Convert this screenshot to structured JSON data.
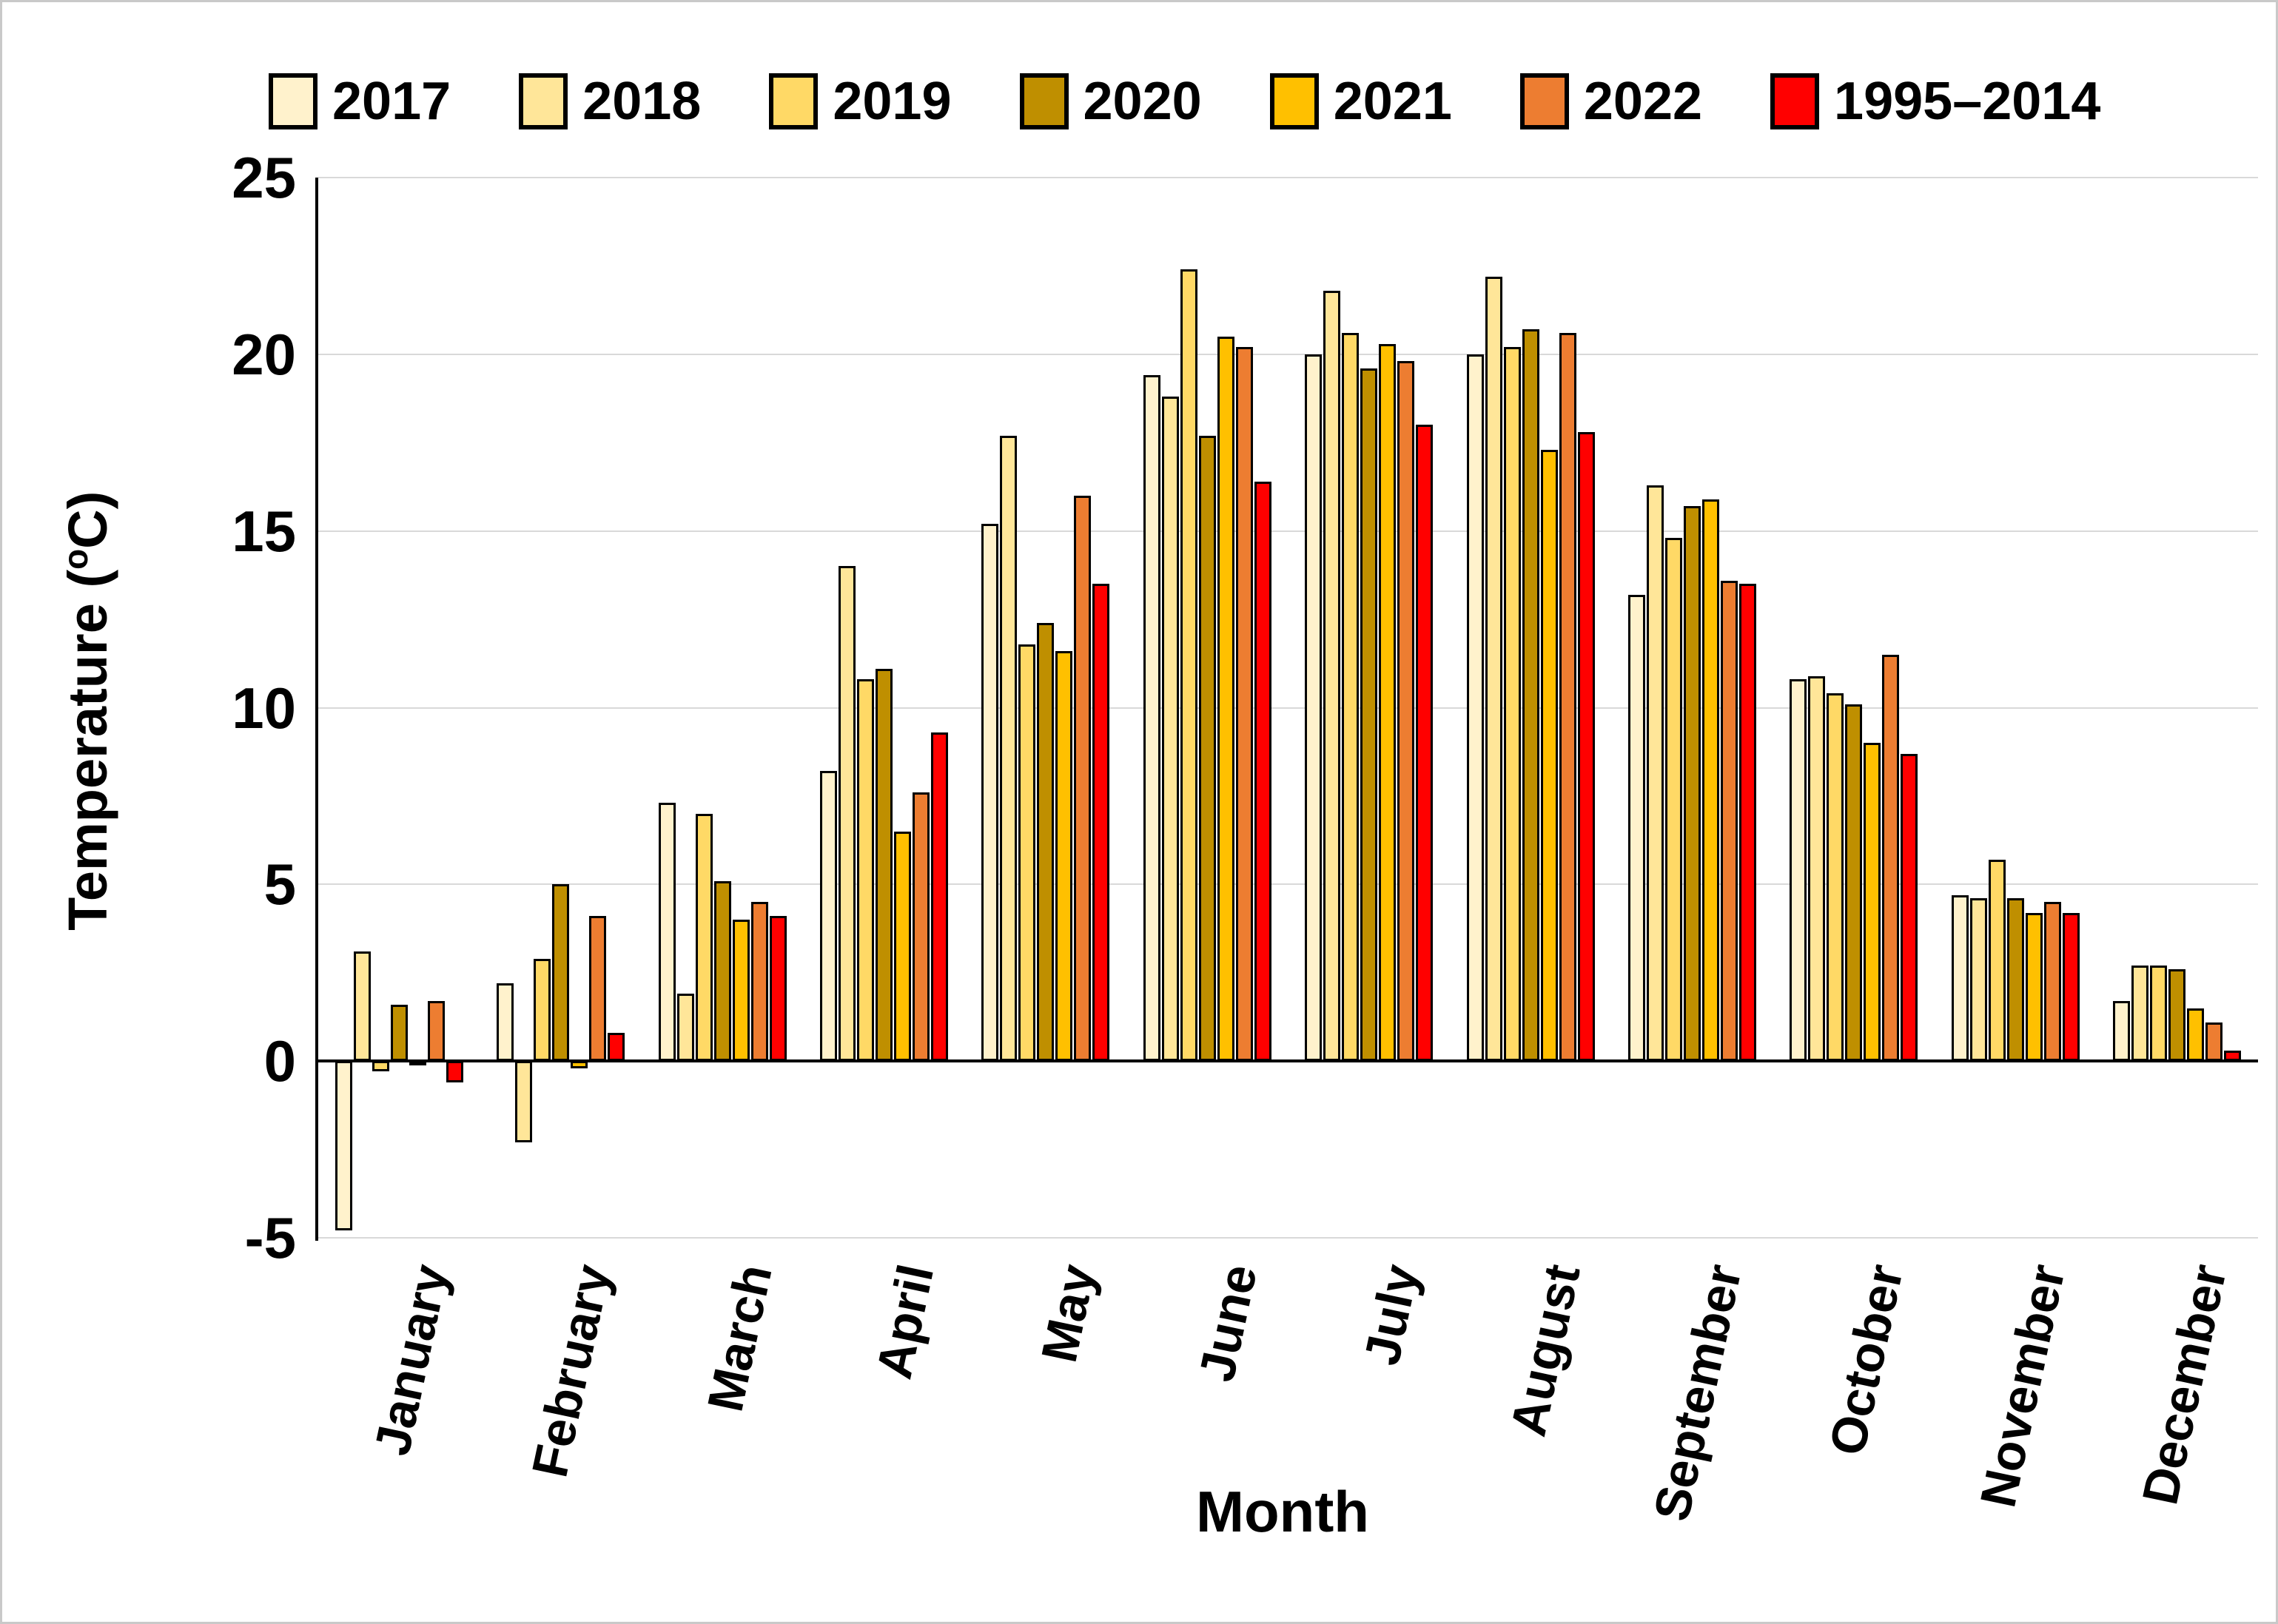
{
  "frame": {
    "background": "#FFFFFF",
    "border_color": "#C9C9C9"
  },
  "chart_data": {
    "type": "bar",
    "title": "",
    "xlabel": "Month",
    "ylabel": "Temperature (°C)",
    "ylabel_parts": {
      "prefix": "Temperature (",
      "superscript": "o",
      "suffix": "C)"
    },
    "categories": [
      "January",
      "February",
      "March",
      "April",
      "May",
      "June",
      "July",
      "August",
      "September",
      "October",
      "November",
      "December"
    ],
    "series": [
      {
        "name": "2017",
        "color": "#FFF2CC",
        "values": [
          -4.8,
          2.2,
          7.3,
          8.2,
          15.2,
          19.4,
          20.0,
          20.0,
          13.2,
          10.8,
          4.7,
          1.7
        ]
      },
      {
        "name": "2018",
        "color": "#FFE699",
        "values": [
          3.1,
          -2.3,
          1.9,
          14.0,
          17.7,
          18.8,
          21.8,
          22.2,
          16.3,
          10.9,
          4.6,
          2.7
        ]
      },
      {
        "name": "2019",
        "color": "#FFD966",
        "values": [
          -0.3,
          2.9,
          7.0,
          10.8,
          11.8,
          22.4,
          20.6,
          20.2,
          14.8,
          10.4,
          5.7,
          2.7
        ]
      },
      {
        "name": "2020",
        "color": "#BF8F00",
        "values": [
          1.6,
          5.0,
          5.1,
          11.1,
          12.4,
          17.7,
          19.6,
          20.7,
          15.7,
          10.1,
          4.6,
          2.6
        ]
      },
      {
        "name": "2021",
        "color": "#FFC000",
        "values": [
          -0.1,
          -0.2,
          4.0,
          6.5,
          11.6,
          20.5,
          20.3,
          17.3,
          15.9,
          9.0,
          4.2,
          1.5
        ]
      },
      {
        "name": "2022",
        "color": "#ED7D31",
        "values": [
          1.7,
          4.1,
          4.5,
          7.6,
          16.0,
          20.2,
          19.8,
          20.6,
          13.6,
          11.5,
          4.5,
          1.1
        ]
      },
      {
        "name": "1995–2014",
        "color": "#FF0000",
        "values": [
          -0.6,
          0.8,
          4.1,
          9.3,
          13.5,
          16.4,
          18.0,
          17.8,
          13.5,
          8.7,
          4.2,
          0.3
        ]
      }
    ],
    "ylim": [
      -5,
      25
    ],
    "yticks": [
      25,
      20,
      15,
      10,
      5,
      0,
      -5
    ],
    "grid": true,
    "gridline_color": "#D9D9D9",
    "axis_color": "#000000",
    "bar_outline_color": "#000000",
    "legend_position": "top"
  }
}
